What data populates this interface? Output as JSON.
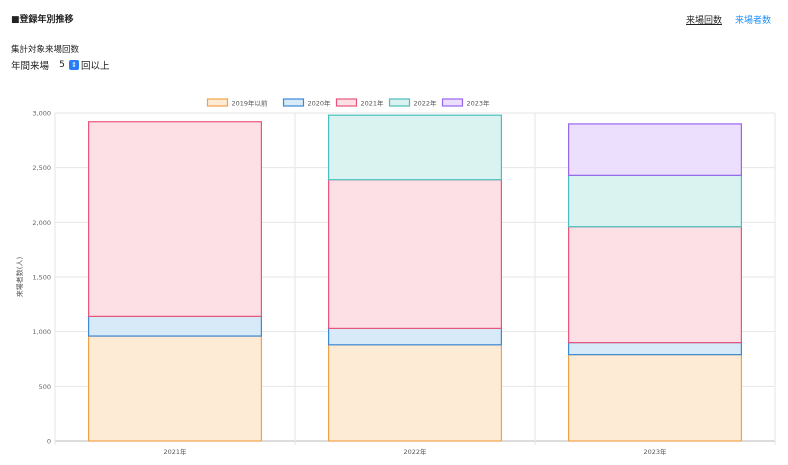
{
  "header": {
    "section_title": "■登録年別推移",
    "tabs": [
      {
        "label": "来場回数",
        "active": false
      },
      {
        "label": "来場者数",
        "active": true
      }
    ]
  },
  "filter": {
    "label": "集計対象来場回数",
    "prefix": "年間来場",
    "value": "5",
    "suffix": "回以上"
  },
  "colors": {
    "accent": "#1a90ff",
    "series": [
      "#f4a24a",
      "#3b8ad8",
      "#e8557a",
      "#4bbfbe",
      "#9966ee"
    ],
    "fills": [
      "#fdebd6",
      "#d8e9f8",
      "#fde0e6",
      "#daf2f0",
      "#ebdffd"
    ]
  },
  "chart_data": {
    "type": "bar",
    "stacked": true,
    "categories": [
      "2021年",
      "2022年",
      "2023年"
    ],
    "series": [
      {
        "name": "2019年以前",
        "values": [
          960,
          880,
          790
        ]
      },
      {
        "name": "2020年",
        "values": [
          180,
          150,
          110
        ]
      },
      {
        "name": "2021年",
        "values": [
          1780,
          1360,
          1060
        ]
      },
      {
        "name": "2022年",
        "values": [
          0,
          590,
          470
        ]
      },
      {
        "name": "2023年",
        "values": [
          0,
          0,
          470
        ]
      }
    ],
    "ylabel": "来場者数(人)",
    "xlabel": "",
    "ylim": [
      0,
      3000
    ],
    "yticks": [
      0,
      500,
      1000,
      1500,
      2000,
      2500,
      3000
    ],
    "ytick_labels": [
      "0",
      "500",
      "1,000",
      "1,500",
      "2,000",
      "2,500",
      "3,000"
    ],
    "grid": true,
    "legend": "top-center"
  }
}
